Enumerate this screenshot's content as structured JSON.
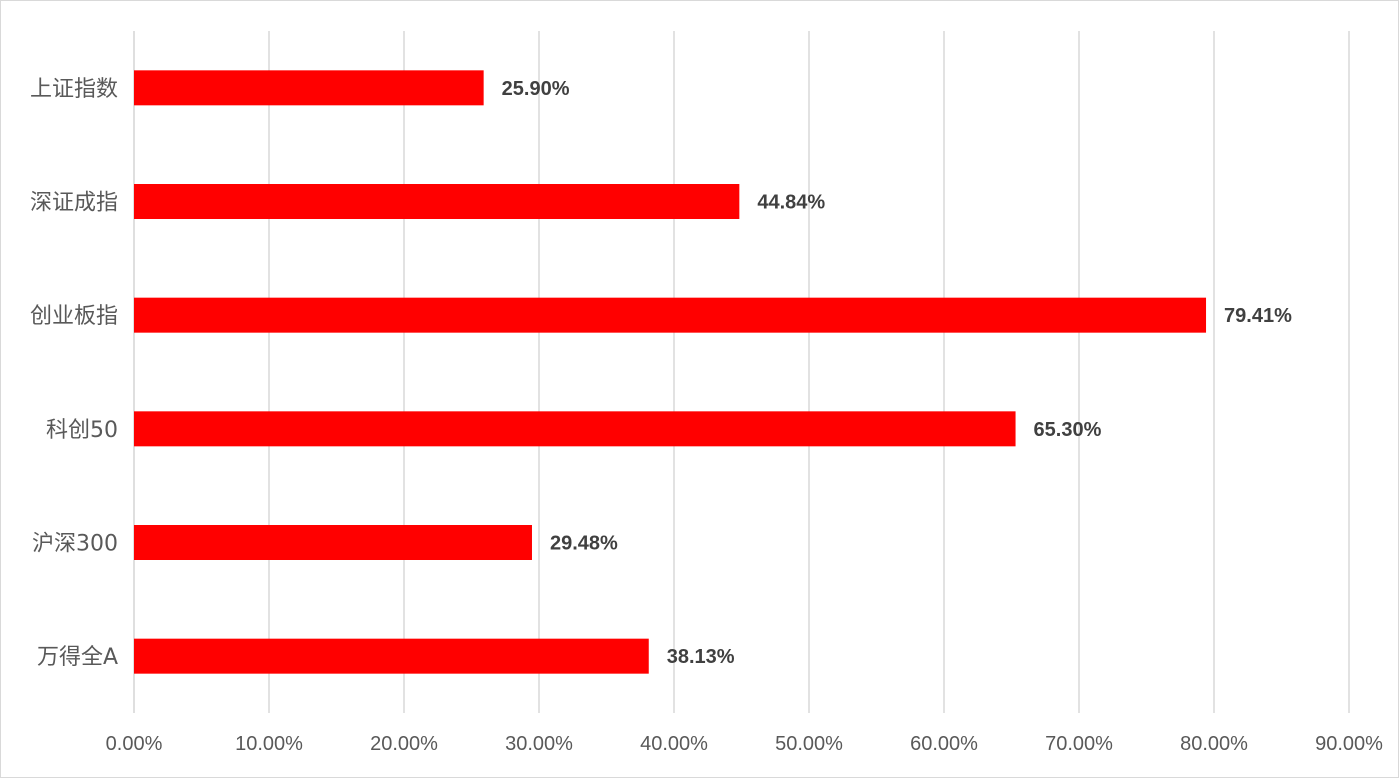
{
  "chart_data": {
    "type": "bar",
    "orientation": "horizontal",
    "categories": [
      "上证指数",
      "深证成指",
      "创业板指",
      "科创50",
      "沪深300",
      "万得全A"
    ],
    "values": [
      25.9,
      44.84,
      79.41,
      65.3,
      29.48,
      38.13
    ],
    "data_labels": [
      "25.90%",
      "44.84%",
      "79.41%",
      "65.30%",
      "29.48%",
      "38.13%"
    ],
    "x_ticks": [
      0,
      10,
      20,
      30,
      40,
      50,
      60,
      70,
      80,
      90
    ],
    "x_tick_labels": [
      "0.00%",
      "10.00%",
      "20.00%",
      "30.00%",
      "40.00%",
      "50.00%",
      "60.00%",
      "70.00%",
      "80.00%",
      "90.00%"
    ],
    "xlim": [
      0,
      90
    ],
    "title": "",
    "xlabel": "",
    "ylabel": "",
    "grid": true,
    "legend": "none",
    "bar_color": "#ff0000",
    "gridline_color": "#d9d9d9"
  }
}
